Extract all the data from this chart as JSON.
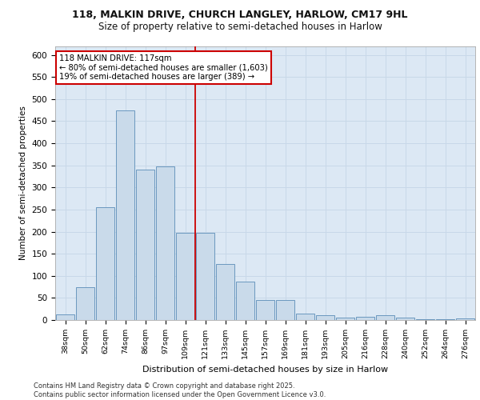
{
  "title_line1": "118, MALKIN DRIVE, CHURCH LANGLEY, HARLOW, CM17 9HL",
  "title_line2": "Size of property relative to semi-detached houses in Harlow",
  "xlabel": "Distribution of semi-detached houses by size in Harlow",
  "ylabel": "Number of semi-detached properties",
  "categories": [
    "38sqm",
    "50sqm",
    "62sqm",
    "74sqm",
    "86sqm",
    "97sqm",
    "109sqm",
    "121sqm",
    "133sqm",
    "145sqm",
    "157sqm",
    "169sqm",
    "181sqm",
    "193sqm",
    "205sqm",
    "216sqm",
    "228sqm",
    "240sqm",
    "252sqm",
    "264sqm",
    "276sqm"
  ],
  "values": [
    13,
    75,
    255,
    475,
    340,
    348,
    197,
    197,
    127,
    87,
    46,
    46,
    15,
    10,
    6,
    7,
    10,
    6,
    2,
    2,
    3
  ],
  "bar_color": "#c9daea",
  "bar_edge_color": "#5b8db8",
  "vline_color": "#cc0000",
  "vline_index": 6.5,
  "annotation_line1": "118 MALKIN DRIVE: 117sqm",
  "annotation_line2": "← 80% of semi-detached houses are smaller (1,603)",
  "annotation_line3": "19% of semi-detached houses are larger (389) →",
  "annotation_box_color": "#ffffff",
  "annotation_box_edge_color": "#cc0000",
  "grid_color": "#c8d8e8",
  "background_color": "#dce8f4",
  "footer_text": "Contains HM Land Registry data © Crown copyright and database right 2025.\nContains public sector information licensed under the Open Government Licence v3.0.",
  "ylim": [
    0,
    620
  ],
  "yticks": [
    0,
    50,
    100,
    150,
    200,
    250,
    300,
    350,
    400,
    450,
    500,
    550,
    600
  ]
}
